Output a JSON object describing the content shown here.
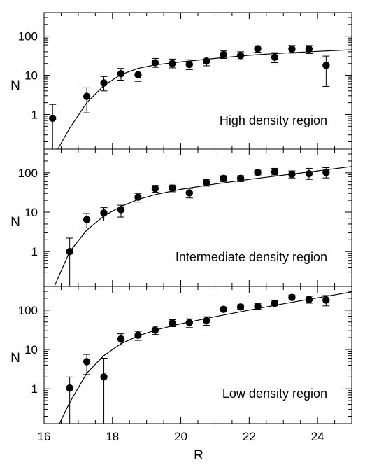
{
  "chart_data": [
    {
      "type": "scatter",
      "annotation": "High density region",
      "xlabel": "R",
      "ylabel": "N",
      "xlim": [
        16,
        25
      ],
      "ylim": [
        0.13,
        400
      ],
      "y_scale": "log",
      "grid": false,
      "yticks": [
        "1",
        "10",
        "100"
      ],
      "fit_curve": "solid line",
      "points": [
        {
          "x": 16.25,
          "y": 0.8,
          "lo": 0.13,
          "hi": 1.8
        },
        {
          "x": 17.25,
          "y": 2.9,
          "lo": 1.1,
          "hi": 4.8
        },
        {
          "x": 17.75,
          "y": 6.4,
          "lo": 4.0,
          "hi": 9.3
        },
        {
          "x": 18.25,
          "y": 11,
          "lo": 7.5,
          "hi": 15
        },
        {
          "x": 18.75,
          "y": 10.3,
          "lo": 7.0,
          "hi": 14.5
        },
        {
          "x": 19.25,
          "y": 21,
          "lo": 16,
          "hi": 27
        },
        {
          "x": 19.75,
          "y": 20,
          "lo": 15.5,
          "hi": 26
        },
        {
          "x": 20.25,
          "y": 19,
          "lo": 14,
          "hi": 25
        },
        {
          "x": 20.75,
          "y": 23,
          "lo": 17.5,
          "hi": 29
        },
        {
          "x": 21.25,
          "y": 34,
          "lo": 27,
          "hi": 42
        },
        {
          "x": 21.75,
          "y": 32,
          "lo": 25,
          "hi": 40
        },
        {
          "x": 22.25,
          "y": 48,
          "lo": 39,
          "hi": 57
        },
        {
          "x": 22.75,
          "y": 29,
          "lo": 21,
          "hi": 38
        },
        {
          "x": 23.25,
          "y": 47,
          "lo": 37,
          "hi": 58
        },
        {
          "x": 23.75,
          "y": 47,
          "lo": 36,
          "hi": 58
        },
        {
          "x": 24.25,
          "y": 18,
          "lo": 5.2,
          "hi": 31
        }
      ],
      "curve": [
        [
          16.4,
          0.13
        ],
        [
          16.75,
          0.45
        ],
        [
          17.25,
          2.0
        ],
        [
          17.75,
          5.5
        ],
        [
          18.25,
          10.5
        ],
        [
          18.75,
          15.0
        ],
        [
          19.25,
          18.5
        ],
        [
          20,
          22
        ],
        [
          21,
          27
        ],
        [
          22,
          32.5
        ],
        [
          23,
          37
        ],
        [
          24,
          41
        ],
        [
          25,
          45
        ]
      ]
    },
    {
      "type": "scatter",
      "annotation": "Intermediate density region",
      "xlabel": "R",
      "ylabel": "N",
      "xlim": [
        16,
        25
      ],
      "ylim": [
        0.13,
        400
      ],
      "y_scale": "log",
      "grid": false,
      "yticks": [
        "1",
        "10",
        "100"
      ],
      "fit_curve": "solid line",
      "points": [
        {
          "x": 16.75,
          "y": 1.0,
          "lo": 0.13,
          "hi": 2.2
        },
        {
          "x": 17.25,
          "y": 6.5,
          "lo": 4.0,
          "hi": 9.2
        },
        {
          "x": 17.75,
          "y": 9.5,
          "lo": 6.0,
          "hi": 13
        },
        {
          "x": 18.25,
          "y": 11.5,
          "lo": 7.5,
          "hi": 15
        },
        {
          "x": 18.75,
          "y": 24,
          "lo": 18,
          "hi": 30
        },
        {
          "x": 19.25,
          "y": 40,
          "lo": 32,
          "hi": 48
        },
        {
          "x": 19.75,
          "y": 41,
          "lo": 33,
          "hi": 49
        },
        {
          "x": 20.25,
          "y": 31,
          "lo": 23,
          "hi": 40
        },
        {
          "x": 20.75,
          "y": 57,
          "lo": 46,
          "hi": 68
        },
        {
          "x": 21.25,
          "y": 72,
          "lo": 60,
          "hi": 84
        },
        {
          "x": 21.75,
          "y": 72,
          "lo": 60,
          "hi": 84
        },
        {
          "x": 22.25,
          "y": 102,
          "lo": 88,
          "hi": 116
        },
        {
          "x": 22.75,
          "y": 106,
          "lo": 88,
          "hi": 130
        },
        {
          "x": 23.25,
          "y": 92,
          "lo": 74,
          "hi": 112
        },
        {
          "x": 23.75,
          "y": 95,
          "lo": 68,
          "hi": 130
        },
        {
          "x": 24.25,
          "y": 102,
          "lo": 74,
          "hi": 135
        }
      ],
      "curve": [
        [
          16.3,
          0.13
        ],
        [
          16.75,
          1.0
        ],
        [
          17.25,
          3.5
        ],
        [
          17.75,
          8.0
        ],
        [
          18.25,
          14
        ],
        [
          18.75,
          21
        ],
        [
          19.25,
          28
        ],
        [
          20,
          38
        ],
        [
          21,
          52
        ],
        [
          22,
          68
        ],
        [
          23,
          87
        ],
        [
          24,
          112
        ],
        [
          25,
          145
        ]
      ]
    },
    {
      "type": "scatter",
      "annotation": "Low density region",
      "xlabel": "R",
      "ylabel": "N",
      "xlim": [
        16,
        25
      ],
      "ylim": [
        0.13,
        400
      ],
      "y_scale": "log",
      "grid": false,
      "yticks": [
        "1",
        "10",
        "100"
      ],
      "xticks": [
        "16",
        "18",
        "20",
        "22",
        "24"
      ],
      "fit_curve": "solid line",
      "points": [
        {
          "x": 16.75,
          "y": 1.05,
          "lo": 0.13,
          "hi": 2.0
        },
        {
          "x": 17.25,
          "y": 4.9,
          "lo": 2.3,
          "hi": 7.5
        },
        {
          "x": 17.75,
          "y": 2.0,
          "lo": 0.13,
          "hi": 6.0
        },
        {
          "x": 18.25,
          "y": 18.5,
          "lo": 13,
          "hi": 25
        },
        {
          "x": 18.75,
          "y": 23,
          "lo": 17,
          "hi": 29
        },
        {
          "x": 19.25,
          "y": 31,
          "lo": 24,
          "hi": 39
        },
        {
          "x": 19.75,
          "y": 47,
          "lo": 38,
          "hi": 57
        },
        {
          "x": 20.25,
          "y": 48,
          "lo": 36,
          "hi": 60
        },
        {
          "x": 20.75,
          "y": 54,
          "lo": 41,
          "hi": 68
        },
        {
          "x": 21.25,
          "y": 105,
          "lo": 90,
          "hi": 120
        },
        {
          "x": 21.75,
          "y": 120,
          "lo": 104,
          "hi": 137
        },
        {
          "x": 22.25,
          "y": 125,
          "lo": 106,
          "hi": 145
        },
        {
          "x": 22.75,
          "y": 150,
          "lo": 128,
          "hi": 175
        },
        {
          "x": 23.25,
          "y": 210,
          "lo": 180,
          "hi": 242
        },
        {
          "x": 23.75,
          "y": 185,
          "lo": 150,
          "hi": 225
        },
        {
          "x": 24.25,
          "y": 180,
          "lo": 128,
          "hi": 235
        }
      ],
      "curve": [
        [
          16.45,
          0.13
        ],
        [
          16.75,
          0.45
        ],
        [
          17.25,
          2.5
        ],
        [
          17.75,
          7.0
        ],
        [
          18.25,
          14
        ],
        [
          18.75,
          22
        ],
        [
          19.25,
          31
        ],
        [
          20,
          45
        ],
        [
          21,
          68
        ],
        [
          22,
          100
        ],
        [
          23,
          145
        ],
        [
          24,
          205
        ],
        [
          25,
          290
        ]
      ]
    }
  ]
}
